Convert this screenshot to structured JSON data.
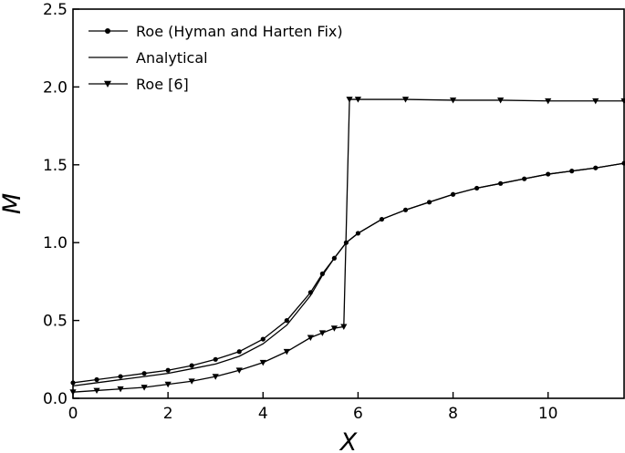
{
  "chart_data": {
    "type": "line",
    "title": "",
    "xlabel": "X",
    "ylabel": "M",
    "xlim": [
      0,
      11.6
    ],
    "ylim": [
      0,
      2.5
    ],
    "xticks": [
      0,
      2,
      4,
      6,
      8,
      10
    ],
    "yticks": [
      0.0,
      0.5,
      1.0,
      1.5,
      2.0,
      2.5
    ],
    "x_tick_labels": [
      "0",
      "2",
      "4",
      "6",
      "8",
      "10"
    ],
    "y_tick_labels": [
      "0.0",
      "0.5",
      "1.0",
      "1.5",
      "2.0",
      "2.5"
    ],
    "grid": false,
    "legend_position": "top-left",
    "series": [
      {
        "name": "Roe (Hyman and Harten Fix)",
        "marker": "circle",
        "line_style": "solid",
        "color": "#000000",
        "x": [
          0,
          0.5,
          1,
          1.5,
          2,
          2.5,
          3,
          3.5,
          4,
          4.5,
          5,
          5.25,
          5.5,
          5.75,
          6,
          6.5,
          7,
          7.5,
          8,
          8.5,
          9,
          9.5,
          10,
          10.5,
          11,
          11.6
        ],
        "y": [
          0.1,
          0.12,
          0.14,
          0.16,
          0.18,
          0.21,
          0.25,
          0.3,
          0.38,
          0.5,
          0.68,
          0.8,
          0.9,
          1.0,
          1.06,
          1.15,
          1.21,
          1.26,
          1.31,
          1.35,
          1.38,
          1.41,
          1.44,
          1.46,
          1.48,
          1.51
        ]
      },
      {
        "name": "Analytical",
        "marker": "none",
        "line_style": "solid",
        "color": "#000000",
        "x": [
          0,
          0.5,
          1,
          1.5,
          2,
          2.5,
          3,
          3.5,
          4,
          4.5,
          5,
          5.25,
          5.5,
          5.75,
          6,
          6.5,
          7,
          7.5,
          8,
          8.5,
          9,
          9.5,
          10,
          10.5,
          11,
          11.6
        ],
        "y": [
          0.08,
          0.1,
          0.12,
          0.14,
          0.16,
          0.19,
          0.22,
          0.27,
          0.35,
          0.47,
          0.66,
          0.79,
          0.9,
          1.0,
          1.06,
          1.15,
          1.21,
          1.26,
          1.31,
          1.35,
          1.38,
          1.41,
          1.44,
          1.46,
          1.48,
          1.51
        ]
      },
      {
        "name": "Roe [6]",
        "marker": "triangle-down",
        "line_style": "solid",
        "color": "#000000",
        "x": [
          0,
          0.5,
          1,
          1.5,
          2,
          2.5,
          3,
          3.5,
          4,
          4.5,
          5,
          5.25,
          5.5,
          5.7,
          5.82,
          6,
          7,
          8,
          9,
          10,
          11,
          11.6
        ],
        "y": [
          0.04,
          0.05,
          0.06,
          0.07,
          0.09,
          0.11,
          0.14,
          0.18,
          0.23,
          0.3,
          0.39,
          0.42,
          0.45,
          0.46,
          1.92,
          1.92,
          1.92,
          1.915,
          1.915,
          1.91,
          1.91,
          1.91
        ]
      }
    ]
  }
}
